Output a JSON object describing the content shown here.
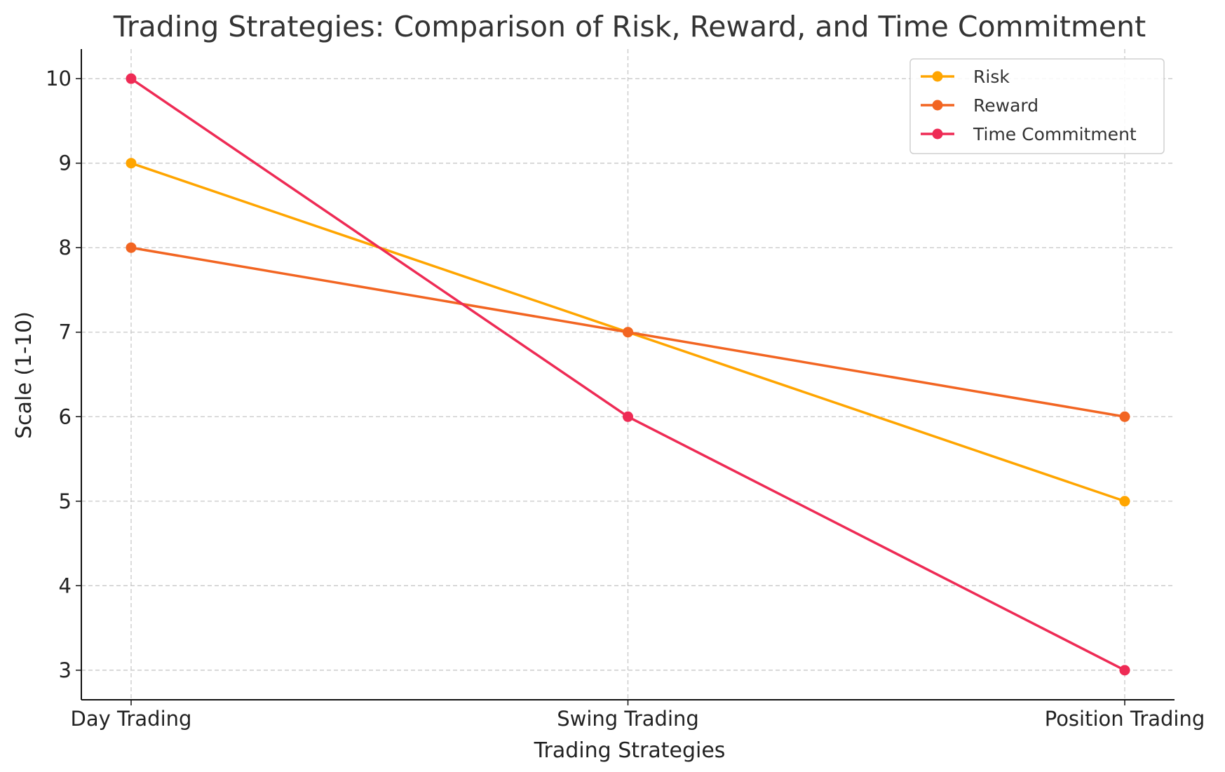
{
  "chart_data": {
    "type": "line",
    "title": "Trading Strategies: Comparison of Risk, Reward, and Time Commitment",
    "xlabel": "Trading Strategies",
    "ylabel": "Scale (1-10)",
    "categories": [
      "Day Trading",
      "Swing Trading",
      "Position Trading"
    ],
    "ylim": [
      2.65,
      10.35
    ],
    "yticks": [
      3,
      4,
      5,
      6,
      7,
      8,
      9,
      10
    ],
    "grid": true,
    "legend_position": "top-right",
    "series": [
      {
        "name": "Risk",
        "values": [
          9,
          7,
          5
        ],
        "color": "#FFA500"
      },
      {
        "name": "Reward",
        "values": [
          8,
          7,
          6
        ],
        "color": "#F26522"
      },
      {
        "name": "Time Commitment",
        "values": [
          10,
          6,
          3
        ],
        "color": "#EE2B55"
      }
    ]
  }
}
